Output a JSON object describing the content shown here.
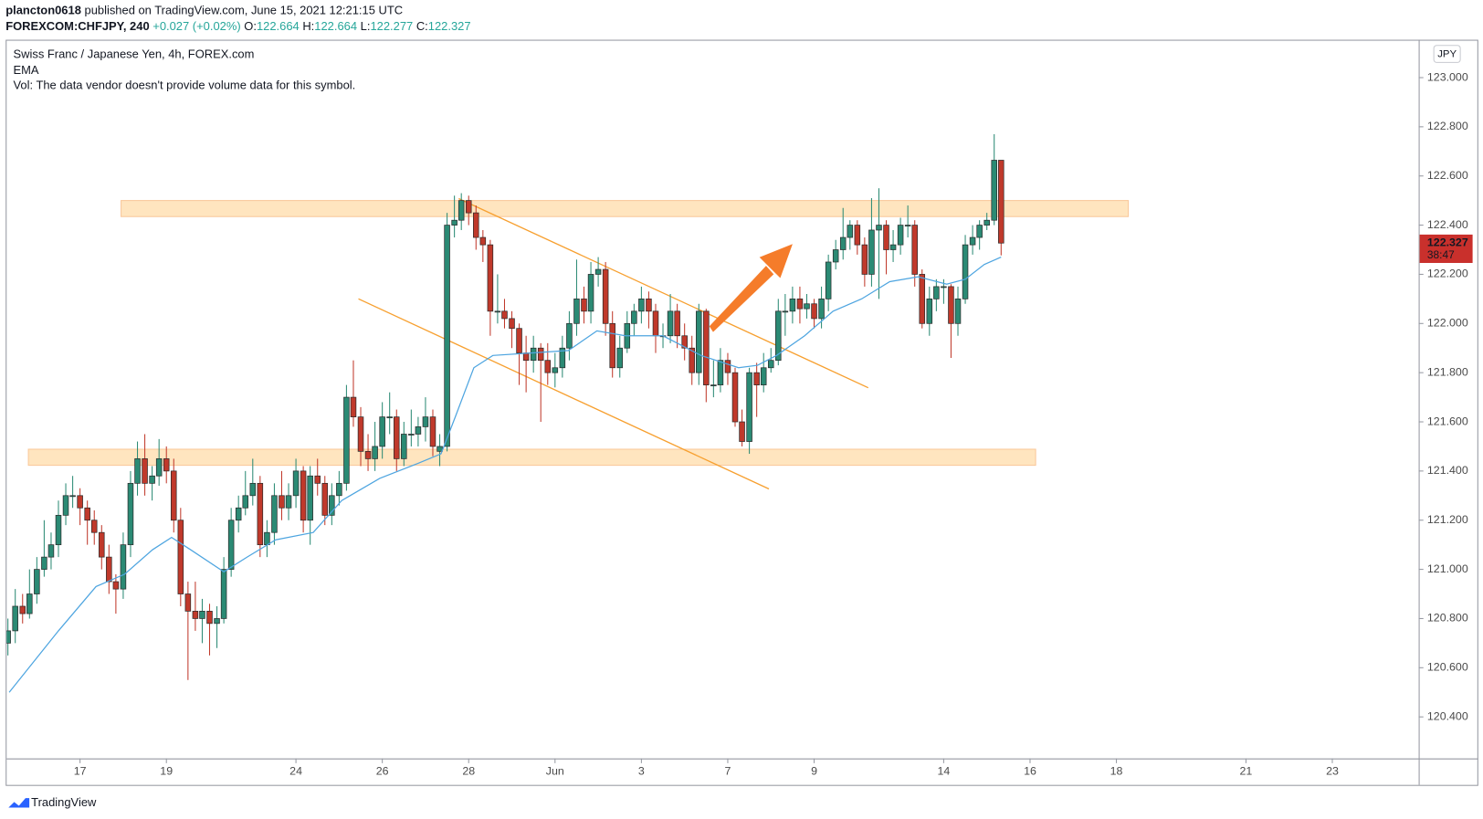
{
  "header": {
    "author": "plancton0618",
    "published": "published on TradingView.com, June 15, 2021 12:21:15 UTC",
    "symbol": "FOREXCOM:CHFJPY, 240",
    "change": "+0.027 (+0.02%)",
    "open_label": "O:",
    "high_label": "H:",
    "low_label": "L:",
    "close_label": "C:"
  },
  "brand": "TradingView",
  "chart_data": {
    "type": "candlestick",
    "title": "Swiss Franc / Japanese Yen, 4h, FOREX.com",
    "volume_note": "Vol: The data vendor doesn't provide volume data for this symbol.",
    "currency": "JPY",
    "countdown": "38:47",
    "up_color": "#2b8a74",
    "down_color": "#c0392b",
    "x": [
      -1.67,
      -1.5,
      -1.33,
      -1.17,
      -1,
      -0.83,
      -0.67,
      -0.5,
      -0.33,
      -0.17,
      0,
      0.17,
      0.33,
      0.5,
      0.67,
      0.83,
      1,
      1.17,
      1.33,
      1.5,
      1.67,
      1.83,
      2,
      2.17,
      2.33,
      2.5,
      2.67,
      2.83,
      3,
      3.17,
      3.33,
      3.5,
      3.67,
      3.83,
      4,
      4.17,
      4.33,
      4.5,
      4.67,
      4.83,
      5,
      5.17,
      5.33,
      5.5,
      5.67,
      5.83,
      6,
      6.17,
      6.33,
      6.5,
      6.67,
      6.83,
      7,
      7.17,
      7.33,
      7.5,
      7.67,
      7.83,
      8,
      8.17,
      8.33,
      8.5,
      8.67,
      8.83,
      9,
      9.17,
      9.33,
      9.5,
      9.67,
      9.83,
      10,
      10.17,
      10.33,
      10.5,
      10.67,
      10.83,
      11,
      11.17,
      11.33,
      11.5,
      11.67,
      11.83,
      12,
      12.17,
      12.33,
      12.5,
      12.67,
      12.83,
      13,
      13.17,
      13.33,
      13.5,
      13.67,
      13.83,
      14,
      14.17,
      14.33,
      14.5,
      14.67,
      14.83,
      15,
      15.17,
      15.33,
      15.5,
      15.67,
      15.83,
      16,
      16.17,
      16.33,
      16.5,
      16.67,
      16.83,
      17,
      17.17,
      17.33,
      17.5,
      17.67,
      17.83,
      18,
      18.17,
      18.33,
      18.5,
      18.67,
      18.83,
      19,
      19.17,
      19.33,
      19.5,
      19.67,
      19.83,
      20,
      20.17,
      20.33,
      20.5,
      20.67,
      20.83,
      21,
      21.17,
      21.33
    ],
    "open": [
      120.7,
      120.75,
      120.85,
      120.82,
      120.9,
      121.0,
      121.05,
      121.1,
      121.22,
      121.3,
      121.3,
      121.25,
      121.2,
      121.15,
      121.05,
      120.95,
      120.92,
      121.1,
      121.35,
      121.45,
      121.35,
      121.38,
      121.45,
      121.4,
      121.2,
      120.9,
      120.83,
      120.8,
      120.83,
      120.78,
      120.8,
      121.0,
      121.2,
      121.25,
      121.3,
      121.35,
      121.1,
      121.15,
      121.3,
      121.25,
      121.3,
      121.4,
      121.2,
      121.38,
      121.35,
      121.22,
      121.3,
      121.35,
      121.7,
      121.62,
      121.48,
      121.45,
      121.5,
      121.62,
      121.62,
      121.45,
      121.55,
      121.55,
      121.58,
      121.62,
      121.48,
      121.5,
      122.4,
      122.42,
      122.5,
      122.45,
      122.35,
      122.32,
      122.05,
      122.05,
      122.02,
      121.98,
      121.88,
      121.85,
      121.9,
      121.85,
      121.8,
      121.82,
      121.9,
      122.0,
      122.1,
      122.05,
      122.2,
      122.22,
      122.0,
      121.82,
      121.9,
      122.0,
      122.05,
      122.1,
      122.05,
      121.95,
      121.95,
      122.05,
      121.95,
      121.9,
      121.8,
      122.05,
      121.75,
      121.75,
      121.85,
      121.8,
      121.6,
      121.52,
      121.8,
      121.75,
      121.82,
      121.85,
      122.05,
      122.05,
      122.1,
      122.06,
      122.08,
      122.02,
      122.1,
      122.25,
      122.3,
      122.35,
      122.4,
      122.32,
      122.2,
      122.38,
      122.4,
      122.3,
      122.32,
      122.4,
      122.4,
      122.2,
      122.0,
      122.1,
      122.15,
      122.15,
      122.0,
      122.1,
      122.32,
      122.35,
      122.4,
      122.42,
      122.664
    ],
    "high": [
      120.8,
      120.92,
      120.9,
      121.0,
      121.05,
      121.2,
      121.15,
      121.28,
      121.35,
      121.38,
      121.33,
      121.28,
      121.24,
      121.18,
      121.1,
      120.98,
      121.15,
      121.4,
      121.52,
      121.55,
      121.42,
      121.53,
      121.5,
      121.45,
      121.25,
      120.95,
      120.95,
      120.88,
      120.86,
      120.85,
      121.05,
      121.25,
      121.3,
      121.4,
      121.45,
      121.38,
      121.2,
      121.35,
      121.4,
      121.35,
      121.45,
      121.42,
      121.42,
      121.45,
      121.38,
      121.35,
      121.4,
      121.75,
      121.85,
      121.66,
      121.55,
      121.6,
      121.68,
      121.72,
      121.65,
      121.6,
      121.65,
      121.62,
      121.7,
      121.65,
      121.55,
      122.45,
      122.52,
      122.53,
      122.52,
      122.48,
      122.38,
      122.34,
      122.2,
      122.1,
      122.05,
      122.0,
      121.95,
      121.95,
      121.92,
      121.92,
      121.88,
      121.95,
      122.05,
      122.26,
      122.15,
      122.25,
      122.27,
      122.25,
      122.05,
      121.95,
      122.05,
      122.08,
      122.15,
      122.13,
      122.08,
      122.0,
      122.12,
      122.08,
      122.0,
      121.95,
      122.08,
      122.06,
      121.85,
      121.9,
      121.88,
      121.82,
      121.65,
      121.82,
      121.84,
      121.88,
      121.9,
      122.1,
      122.12,
      122.15,
      122.15,
      122.12,
      122.1,
      122.15,
      122.28,
      122.34,
      122.47,
      122.42,
      122.42,
      122.35,
      122.51,
      122.55,
      122.42,
      122.38,
      122.43,
      122.48,
      122.42,
      122.22,
      122.15,
      122.18,
      122.18,
      122.16,
      122.15,
      122.36,
      122.4,
      122.42,
      122.45,
      122.77,
      122.664
    ],
    "low": [
      120.65,
      120.7,
      120.78,
      120.8,
      120.86,
      120.97,
      121.0,
      121.05,
      121.18,
      121.25,
      121.18,
      121.1,
      121.1,
      121.0,
      120.9,
      120.82,
      120.88,
      121.05,
      121.3,
      121.3,
      121.28,
      121.34,
      121.35,
      121.15,
      120.85,
      120.55,
      120.75,
      120.7,
      120.65,
      120.68,
      120.78,
      120.97,
      121.15,
      121.22,
      121.26,
      121.05,
      121.05,
      121.1,
      121.2,
      121.2,
      121.25,
      121.15,
      121.1,
      121.3,
      121.18,
      121.18,
      121.26,
      121.32,
      121.58,
      121.42,
      121.4,
      121.4,
      121.45,
      121.55,
      121.4,
      121.42,
      121.5,
      121.5,
      121.52,
      121.46,
      121.42,
      121.48,
      122.35,
      122.38,
      122.4,
      122.3,
      122.25,
      121.95,
      122.0,
      121.98,
      121.9,
      121.75,
      121.72,
      121.8,
      121.6,
      121.75,
      121.74,
      121.78,
      121.85,
      121.95,
      122.0,
      122.0,
      122.15,
      121.95,
      121.78,
      121.78,
      121.88,
      121.95,
      122.0,
      121.98,
      121.88,
      121.9,
      121.92,
      121.9,
      121.85,
      121.75,
      121.75,
      121.68,
      121.7,
      121.72,
      121.75,
      121.58,
      121.5,
      121.47,
      121.62,
      121.72,
      121.8,
      121.83,
      121.95,
      122.0,
      122.0,
      122.02,
      121.98,
      121.98,
      122.05,
      122.22,
      122.26,
      122.3,
      122.28,
      122.15,
      122.15,
      122.1,
      122.2,
      122.25,
      122.28,
      122.35,
      122.15,
      121.98,
      121.95,
      122.05,
      122.08,
      121.86,
      121.95,
      122.08,
      122.28,
      122.3,
      122.38,
      122.4,
      122.277
    ],
    "close": [
      120.75,
      120.85,
      120.82,
      120.9,
      121.0,
      121.05,
      121.1,
      121.22,
      121.3,
      121.3,
      121.25,
      121.2,
      121.15,
      121.05,
      120.95,
      120.92,
      121.1,
      121.35,
      121.45,
      121.35,
      121.38,
      121.45,
      121.4,
      121.2,
      120.9,
      120.83,
      120.8,
      120.83,
      120.78,
      120.8,
      121.0,
      121.2,
      121.25,
      121.3,
      121.35,
      121.1,
      121.15,
      121.3,
      121.25,
      121.3,
      121.4,
      121.2,
      121.38,
      121.35,
      121.22,
      121.3,
      121.35,
      121.7,
      121.62,
      121.48,
      121.45,
      121.5,
      121.62,
      121.62,
      121.45,
      121.55,
      121.55,
      121.58,
      121.62,
      121.5,
      121.5,
      122.4,
      122.42,
      122.5,
      122.45,
      122.35,
      122.32,
      122.05,
      122.05,
      122.02,
      121.98,
      121.88,
      121.85,
      121.9,
      121.85,
      121.8,
      121.82,
      121.9,
      122.0,
      122.1,
      122.05,
      122.2,
      122.22,
      122.0,
      121.82,
      121.9,
      122.0,
      122.05,
      122.1,
      122.05,
      121.95,
      121.95,
      122.05,
      121.95,
      121.9,
      121.8,
      122.05,
      121.75,
      121.75,
      121.85,
      121.8,
      121.6,
      121.52,
      121.8,
      121.75,
      121.82,
      121.85,
      122.05,
      122.05,
      122.1,
      122.06,
      122.08,
      122.02,
      122.1,
      122.25,
      122.3,
      122.35,
      122.4,
      122.32,
      122.2,
      122.38,
      122.4,
      122.3,
      122.32,
      122.4,
      122.4,
      122.2,
      122.0,
      122.1,
      122.15,
      122.15,
      122.0,
      122.1,
      122.32,
      122.35,
      122.4,
      122.42,
      122.664,
      122.327
    ],
    "ema": {
      "name": "EMA",
      "color": "#4ea5e0",
      "x": [
        -1.64,
        -0.5,
        0.37,
        1.03,
        1.68,
        2.12,
        2.56,
        3.33,
        3.87,
        4.53,
        5.4,
        6.06,
        6.94,
        7.81,
        8.36,
        8.69,
        9.12,
        9.56,
        10.44,
        11.31,
        11.97,
        12.63,
        13.5,
        14.38,
        15.25,
        15.69,
        16.13,
        16.78,
        17.44,
        18.1,
        18.75,
        19.41,
        20.07,
        20.5,
        20.94,
        21.33
      ],
      "values": [
        120.5,
        120.75,
        120.93,
        120.98,
        121.08,
        121.13,
        121.08,
        120.99,
        121.05,
        121.12,
        121.15,
        121.28,
        121.37,
        121.43,
        121.47,
        121.62,
        121.82,
        121.87,
        121.88,
        121.89,
        121.97,
        121.95,
        121.95,
        121.87,
        121.82,
        121.83,
        121.87,
        121.95,
        122.05,
        122.1,
        122.17,
        122.19,
        122.16,
        122.18,
        122.24,
        122.27
      ]
    },
    "xlim": [
      -1.7,
      31
    ],
    "xticks": [
      {
        "value": 0,
        "label": "17"
      },
      {
        "value": 2,
        "label": "19"
      },
      {
        "value": 5,
        "label": "24"
      },
      {
        "value": 7,
        "label": "26"
      },
      {
        "value": 9,
        "label": "28"
      },
      {
        "value": 11,
        "label": "Jun"
      },
      {
        "value": 13,
        "label": "3"
      },
      {
        "value": 15,
        "label": "7"
      },
      {
        "value": 17,
        "label": "9"
      },
      {
        "value": 20,
        "label": "14"
      },
      {
        "value": 22,
        "label": "16"
      },
      {
        "value": 24,
        "label": "18"
      },
      {
        "value": 27,
        "label": "21"
      },
      {
        "value": 29,
        "label": "23"
      }
    ],
    "ylim": [
      120.231,
      123.154
    ],
    "yticks": [
      {
        "value": 120.4,
        "label": "120.400"
      },
      {
        "value": 120.6,
        "label": "120.600"
      },
      {
        "value": 120.8,
        "label": "120.800"
      },
      {
        "value": 121.0,
        "label": "121.000"
      },
      {
        "value": 121.2,
        "label": "121.200"
      },
      {
        "value": 121.4,
        "label": "121.400"
      },
      {
        "value": 121.6,
        "label": "121.600"
      },
      {
        "value": 121.8,
        "label": "121.800"
      },
      {
        "value": 122.0,
        "label": "122.000"
      },
      {
        "value": 122.2,
        "label": "122.200"
      },
      {
        "value": 122.4,
        "label": "122.400"
      },
      {
        "value": 122.6,
        "label": "122.600"
      },
      {
        "value": 122.8,
        "label": "122.800"
      },
      {
        "value": 123.0,
        "label": "123.000"
      }
    ],
    "grid": false
  }
}
